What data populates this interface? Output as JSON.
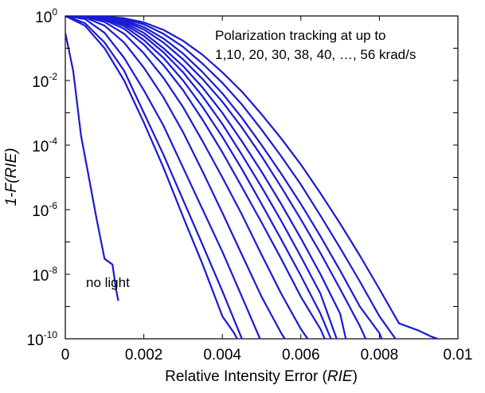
{
  "chart_data": {
    "type": "line",
    "xlabel": {
      "prefix": "Relative Intensity Error (",
      "italic": "RIE",
      "suffix": ")"
    },
    "ylabel": {
      "prefix": "1-F(",
      "italic": "RIE",
      "suffix": ")"
    },
    "xlim": [
      0,
      0.01
    ],
    "ylim": [
      1e-10,
      1
    ],
    "yscale": "log",
    "x_ticks": [
      "0",
      "0.002",
      "0.004",
      "0.006",
      "0.008",
      "0.01"
    ],
    "x_tick_values": [
      0,
      0.002,
      0.004,
      0.006,
      0.008,
      0.01
    ],
    "y_tick_exponents": [
      "-10",
      "-8",
      "-6",
      "-4",
      "-2",
      "0"
    ],
    "y_tick_base": "10",
    "grid": false,
    "line_color": "#1a1ad6",
    "annotations": [
      "Polarization tracking at up to",
      "1,10, 20, 30, 38, 40, …, 56 krad/s",
      "no light"
    ],
    "series": [
      {
        "x": [
          0,
          0.0002,
          0.0004,
          0.0006,
          0.0008,
          0.001,
          0.0012,
          0.0013,
          0.00135
        ],
        "y": [
          0.3,
          0.02,
          0.0002,
          1e-05,
          5e-07,
          3e-08,
          2e-08,
          3e-09,
          1.5e-09
        ]
      },
      {
        "x": [
          0,
          0.0005,
          0.001,
          0.0015,
          0.002,
          0.0025,
          0.003,
          0.0035,
          0.004,
          0.0043,
          0.00455
        ],
        "y": [
          1,
          0.5,
          0.1,
          0.01,
          0.0005,
          2e-05,
          6e-07,
          2e-08,
          5e-10,
          1.5e-10,
          4e-11
        ]
      },
      {
        "x": [
          0,
          0.0005,
          0.001,
          0.0015,
          0.002,
          0.0025,
          0.003,
          0.0035,
          0.004,
          0.0045,
          0.0047
        ],
        "y": [
          1,
          0.6,
          0.15,
          0.02,
          0.001,
          5e-05,
          2e-06,
          8e-08,
          3e-09,
          1e-10,
          4e-11
        ]
      },
      {
        "x": [
          0,
          0.0005,
          0.001,
          0.0015,
          0.002,
          0.0025,
          0.003,
          0.0035,
          0.004,
          0.0045,
          0.0051
        ],
        "y": [
          1,
          0.8,
          0.3,
          0.05,
          0.005,
          0.0004,
          2e-05,
          1e-06,
          5e-08,
          2e-09,
          4e-11
        ]
      },
      {
        "x": [
          0,
          0.0005,
          0.001,
          0.0015,
          0.002,
          0.0025,
          0.003,
          0.0035,
          0.004,
          0.0045,
          0.005,
          0.0055,
          0.0058
        ],
        "y": [
          1,
          0.9,
          0.5,
          0.15,
          0.025,
          0.003,
          0.00025,
          1.5e-05,
          8e-07,
          4e-08,
          2e-09,
          1.5e-10,
          4e-11
        ]
      },
      {
        "x": [
          0,
          0.0005,
          0.001,
          0.0015,
          0.002,
          0.0025,
          0.003,
          0.0035,
          0.004,
          0.0045,
          0.005,
          0.0055,
          0.006,
          0.0064
        ],
        "y": [
          1,
          0.95,
          0.65,
          0.28,
          0.07,
          0.012,
          0.0015,
          0.00013,
          1e-05,
          7e-07,
          4e-08,
          2.5e-09,
          2e-10,
          4e-11
        ]
      },
      {
        "x": [
          0,
          0.0005,
          0.001,
          0.0015,
          0.002,
          0.0025,
          0.003,
          0.0035,
          0.004,
          0.0045,
          0.005,
          0.0055,
          0.006,
          0.0065,
          0.00675
        ],
        "y": [
          1,
          0.97,
          0.75,
          0.4,
          0.13,
          0.03,
          0.005,
          0.0006,
          6e-05,
          5e-06,
          4e-07,
          3e-08,
          2e-09,
          2e-10,
          4e-11
        ]
      },
      {
        "x": [
          0,
          0.0005,
          0.001,
          0.0015,
          0.002,
          0.0025,
          0.003,
          0.0035,
          0.004,
          0.0045,
          0.005,
          0.0055,
          0.006,
          0.0065,
          0.0069
        ],
        "y": [
          1,
          0.98,
          0.8,
          0.48,
          0.18,
          0.05,
          0.01,
          0.0015,
          0.00018,
          1.8e-05,
          1.5e-06,
          1.2e-07,
          9e-09,
          6e-10,
          4e-11
        ]
      },
      {
        "x": [
          0,
          0.0005,
          0.001,
          0.0015,
          0.002,
          0.0025,
          0.003,
          0.0035,
          0.004,
          0.0045,
          0.005,
          0.0055,
          0.006,
          0.0065,
          0.007
        ],
        "y": [
          1,
          0.98,
          0.85,
          0.55,
          0.24,
          0.075,
          0.018,
          0.0032,
          0.00045,
          5e-05,
          5e-06,
          4.5e-07,
          3.5e-08,
          2.5e-09,
          5e-11
        ]
      },
      {
        "x": [
          0,
          0.0005,
          0.001,
          0.0015,
          0.002,
          0.0025,
          0.003,
          0.0035,
          0.004,
          0.0045,
          0.005,
          0.0055,
          0.006,
          0.0065,
          0.007,
          0.0072
        ],
        "y": [
          1,
          0.99,
          0.88,
          0.62,
          0.3,
          0.1,
          0.028,
          0.006,
          0.001,
          0.00013,
          1.5e-05,
          1.5e-06,
          1.3e-07,
          1e-08,
          6e-10,
          5e-11
        ]
      },
      {
        "x": [
          0,
          0.0005,
          0.001,
          0.0015,
          0.002,
          0.0025,
          0.003,
          0.0035,
          0.004,
          0.0045,
          0.005,
          0.0055,
          0.006,
          0.0065,
          0.007,
          0.0075,
          0.0078
        ],
        "y": [
          1,
          0.99,
          0.9,
          0.68,
          0.38,
          0.15,
          0.045,
          0.011,
          0.0022,
          0.00035,
          4.5e-05,
          5e-06,
          5e-07,
          4.5e-08,
          3.5e-09,
          2.5e-10,
          4e-11
        ]
      },
      {
        "x": [
          0,
          0.0005,
          0.001,
          0.0015,
          0.002,
          0.0025,
          0.003,
          0.0035,
          0.004,
          0.0045,
          0.005,
          0.0055,
          0.006,
          0.0065,
          0.007,
          0.0075,
          0.008,
          0.0082
        ],
        "y": [
          1,
          0.99,
          0.93,
          0.74,
          0.45,
          0.2,
          0.068,
          0.018,
          0.004,
          0.0007,
          0.0001,
          1.3e-05,
          1.5e-06,
          1.5e-07,
          1.3e-08,
          1e-09,
          1.5e-10,
          4e-11
        ]
      },
      {
        "x": [
          0,
          0.0005,
          0.001,
          0.0015,
          0.002,
          0.0025,
          0.003,
          0.0035,
          0.004,
          0.0045,
          0.005,
          0.0055,
          0.006,
          0.0065,
          0.007,
          0.0075,
          0.008,
          0.0085,
          0.0088
        ],
        "y": [
          1,
          0.99,
          0.95,
          0.8,
          0.55,
          0.28,
          0.11,
          0.033,
          0.0085,
          0.0018,
          0.0003,
          4.5e-05,
          6e-06,
          6.5e-07,
          6.5e-08,
          6e-09,
          5e-10,
          7e-11,
          4e-11
        ]
      },
      {
        "x": [
          0,
          0.0005,
          0.001,
          0.0015,
          0.002,
          0.0025,
          0.003,
          0.0035,
          0.004,
          0.0045,
          0.005,
          0.0055,
          0.006,
          0.0065,
          0.007,
          0.0075,
          0.008,
          0.0085,
          0.009,
          0.0093,
          0.0097
        ],
        "y": [
          1,
          0.99,
          0.96,
          0.85,
          0.63,
          0.37,
          0.17,
          0.062,
          0.018,
          0.0045,
          0.0009,
          0.00016,
          2.5e-05,
          3.2e-06,
          3.7e-07,
          3.8e-08,
          3.5e-09,
          3e-10,
          1.8e-10,
          1.2e-10,
          8e-11
        ]
      }
    ]
  }
}
